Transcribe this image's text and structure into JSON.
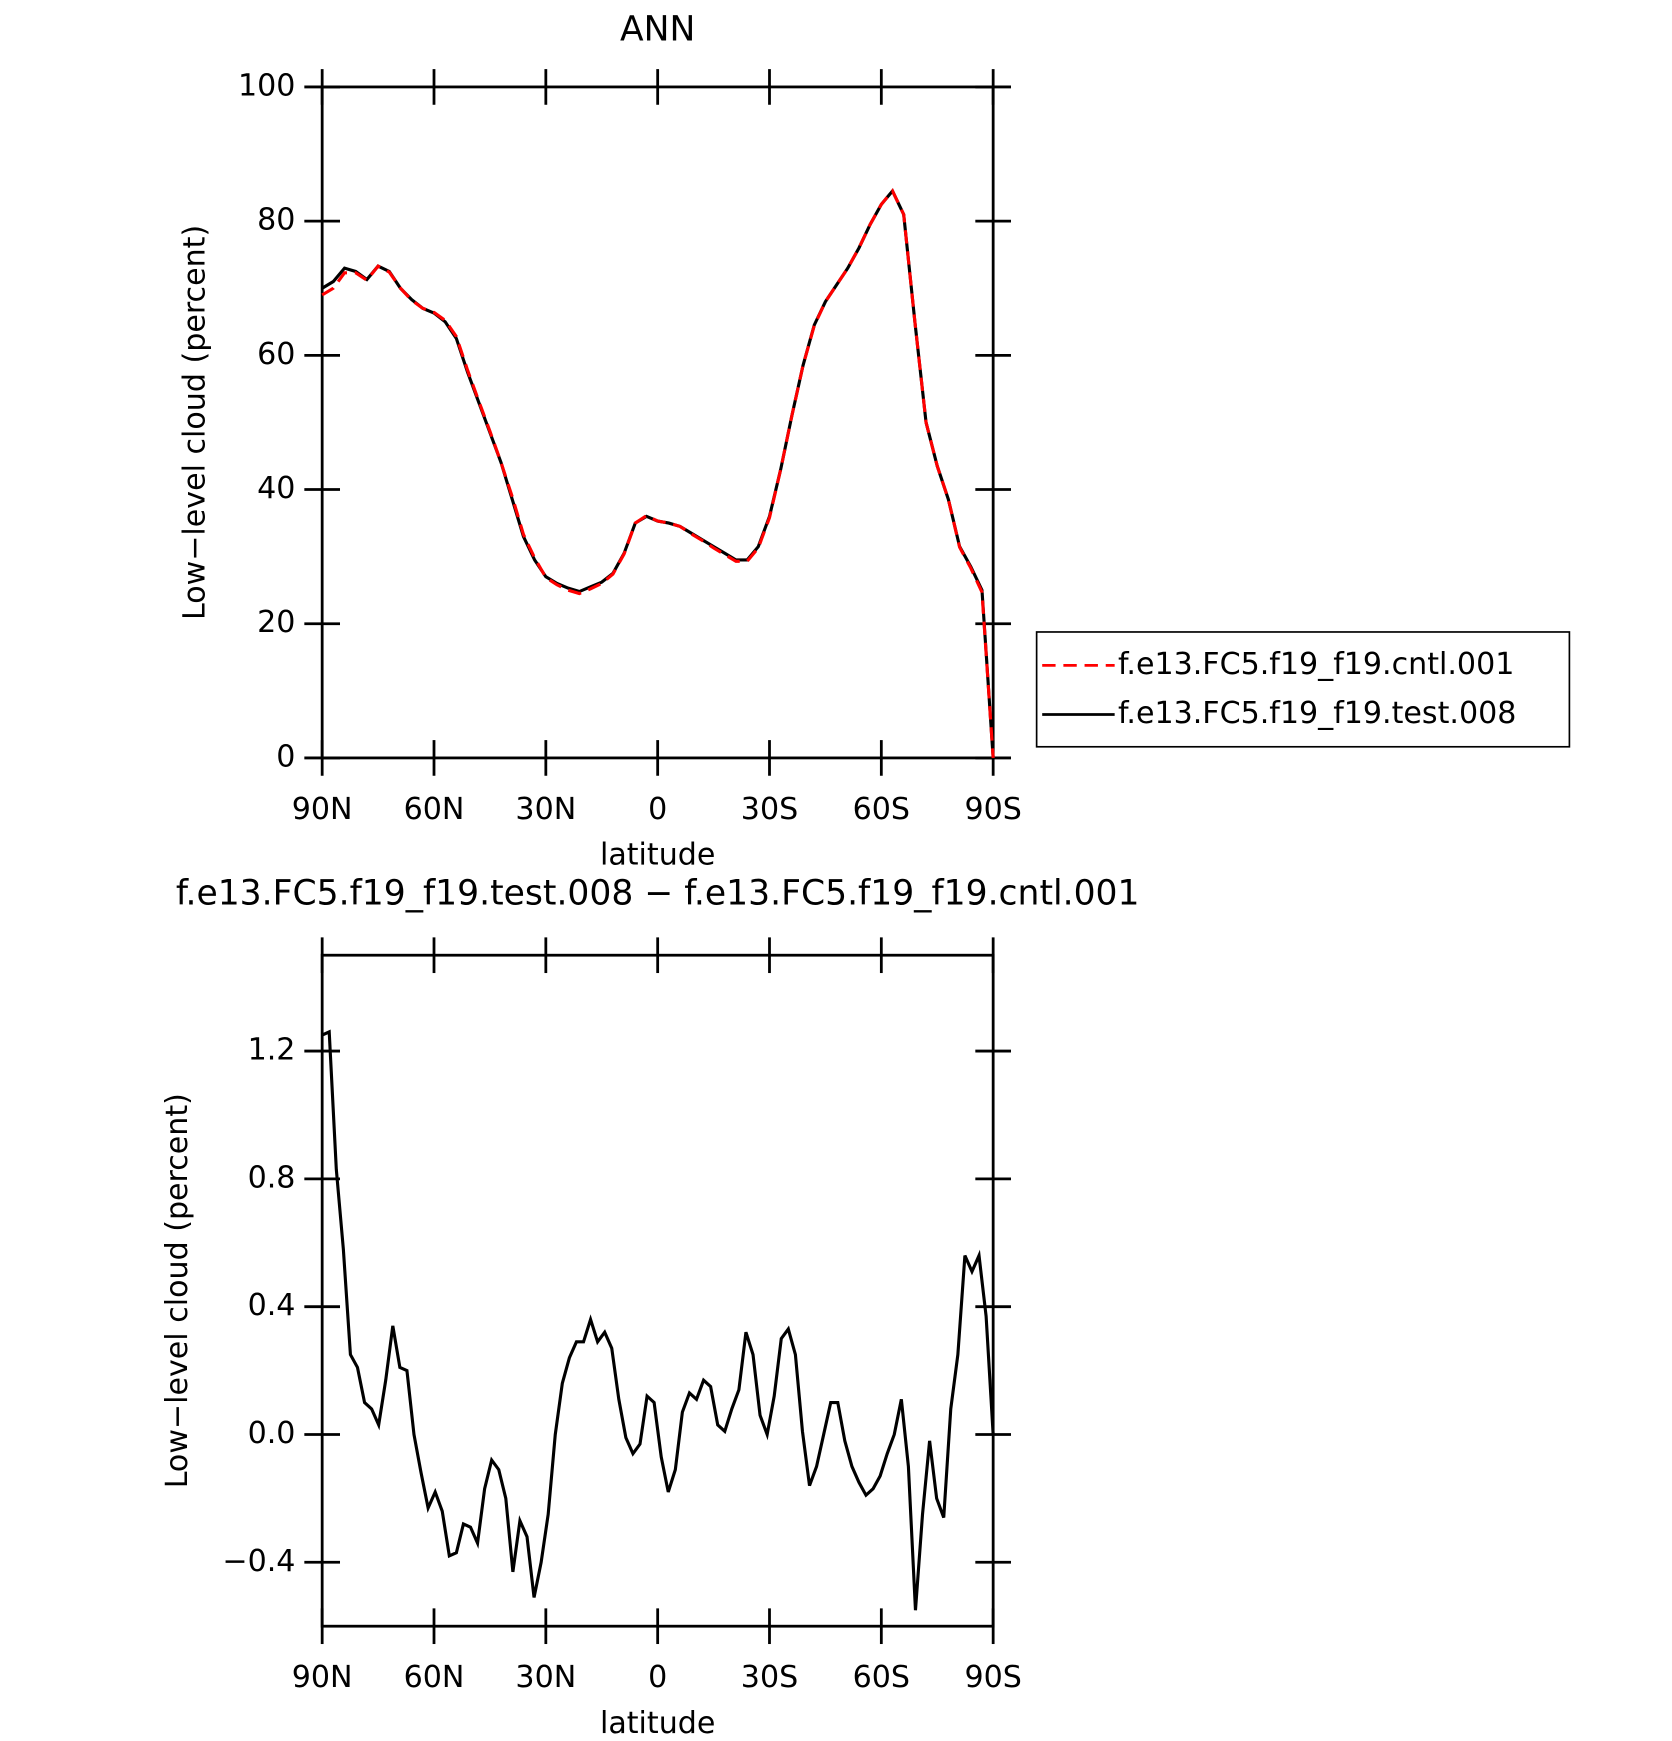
{
  "chart_data": [
    {
      "type": "line",
      "title": "ANN",
      "xlabel": "latitude",
      "ylabel": "Low−level cloud (percent)",
      "x": [
        90,
        87,
        84,
        81,
        78,
        75,
        72,
        69,
        66,
        63,
        60,
        57,
        54,
        51,
        48,
        45,
        42,
        39,
        36,
        33,
        30,
        27,
        24,
        21,
        18,
        15,
        12,
        9,
        6,
        3,
        0,
        -3,
        -6,
        -9,
        -12,
        -15,
        -18,
        -21,
        -24,
        -27,
        -30,
        -33,
        -36,
        -39,
        -42,
        -45,
        -48,
        -51,
        -54,
        -57,
        -60,
        -63,
        -66,
        -69,
        -72,
        -75,
        -78,
        -81,
        -84,
        -87,
        -90
      ],
      "xlim": [
        90,
        -90
      ],
      "xticks": [
        {
          "value": 90,
          "label": "90N"
        },
        {
          "value": 60,
          "label": "60N"
        },
        {
          "value": 30,
          "label": "30N"
        },
        0,
        {
          "value": -30,
          "label": "30S"
        },
        {
          "value": -60,
          "label": "60S"
        },
        {
          "value": -90,
          "label": "90S"
        }
      ],
      "ylim": [
        0,
        100
      ],
      "yticks": [
        0,
        20,
        40,
        60,
        80,
        100
      ],
      "legend": "right",
      "series": [
        {
          "name": "f.e13.FC5.f19_f19.cntl.001",
          "color": "#ff0000",
          "linestyle": "dashed",
          "values": [
            69,
            70,
            72.3,
            72.3,
            71.2,
            73.3,
            72.4,
            70,
            68.2,
            67,
            66.4,
            65.2,
            62.8,
            57.8,
            53.2,
            48.7,
            44,
            38.9,
            33.3,
            29.8,
            26.9,
            25.8,
            25,
            24.5,
            25.2,
            26,
            27.4,
            30.4,
            35,
            36.1,
            35.3,
            35,
            34.5,
            33.4,
            32.4,
            31.3,
            30.3,
            29.3,
            29.3,
            31.3,
            35.8,
            43,
            51,
            58.5,
            64.4,
            68,
            70.5,
            73,
            76,
            79.5,
            82.5,
            84.5,
            81,
            65,
            50,
            43.5,
            38.5,
            31.4,
            28.3,
            24.7,
            0
          ]
        },
        {
          "name": "f.e13.FC5.f19_f19.test.008",
          "color": "#000000",
          "linestyle": "solid",
          "values": [
            70,
            71,
            73,
            72.5,
            71.3,
            73.3,
            72.5,
            70,
            68.3,
            67,
            66.3,
            65,
            62.5,
            57.5,
            53,
            48.5,
            44,
            38.5,
            33,
            29.5,
            27,
            26,
            25.3,
            24.8,
            25.5,
            26.2,
            27.5,
            30.5,
            35,
            36,
            35.3,
            35,
            34.5,
            33.5,
            32.5,
            31.5,
            30.5,
            29.5,
            29.5,
            31.5,
            36,
            43,
            51,
            58.5,
            64.5,
            68,
            70.5,
            73,
            76,
            79.5,
            82.5,
            84.5,
            81,
            65,
            50,
            43.5,
            38.5,
            31.5,
            28.5,
            25,
            0
          ]
        }
      ]
    },
    {
      "type": "line",
      "title": "f.e13.FC5.f19_f19.test.008 − f.e13.FC5.f19_f19.cntl.001",
      "xlabel": "latitude",
      "ylabel": "Low−level cloud (percent)",
      "x": [
        90,
        88.11,
        86.21,
        84.32,
        82.42,
        80.53,
        78.63,
        76.74,
        74.84,
        72.95,
        71.05,
        69.16,
        67.26,
        65.37,
        63.47,
        61.58,
        59.68,
        57.79,
        55.89,
        54,
        52.11,
        50.21,
        48.32,
        46.42,
        44.53,
        42.63,
        40.74,
        38.84,
        36.95,
        35.05,
        33.16,
        31.26,
        29.37,
        27.47,
        25.58,
        23.68,
        21.79,
        19.89,
        18,
        16.11,
        14.21,
        12.32,
        10.42,
        8.53,
        6.63,
        4.74,
        2.84,
        0.95,
        -0.95,
        -2.84,
        -4.74,
        -6.63,
        -8.53,
        -10.42,
        -12.32,
        -14.21,
        -16.11,
        -18,
        -19.89,
        -21.79,
        -23.68,
        -25.58,
        -27.47,
        -29.37,
        -31.26,
        -33.16,
        -35.05,
        -36.95,
        -38.84,
        -40.74,
        -42.63,
        -44.53,
        -46.42,
        -48.32,
        -50.21,
        -52.11,
        -54,
        -55.89,
        -57.79,
        -59.68,
        -61.58,
        -63.47,
        -65.37,
        -67.26,
        -69.16,
        -71.05,
        -72.95,
        -74.84,
        -76.74,
        -78.63,
        -80.53,
        -82.42,
        -84.32,
        -86.21,
        -88.11,
        -90
      ],
      "xlim": [
        90,
        -90
      ],
      "xticks": [
        {
          "value": 90,
          "label": "90N"
        },
        {
          "value": 60,
          "label": "60N"
        },
        {
          "value": 30,
          "label": "30N"
        },
        0,
        {
          "value": -30,
          "label": "30S"
        },
        {
          "value": -60,
          "label": "60S"
        },
        {
          "value": -90,
          "label": "90S"
        }
      ],
      "ylim": [
        -0.6,
        1.5
      ],
      "yticks": [
        {
          "value": -0.4,
          "label": "−0.4"
        },
        {
          "value": 0,
          "label": "0.0"
        },
        0.4,
        0.8,
        1.2
      ],
      "series": [
        {
          "color": "#000000",
          "linestyle": "solid",
          "values": [
            1.25,
            1.26,
            0.83,
            0.58,
            0.25,
            0.21,
            0.1,
            0.08,
            0.03,
            0.17,
            0.34,
            0.21,
            0.2,
            0,
            -0.12,
            -0.23,
            -0.18,
            -0.24,
            -0.38,
            -0.37,
            -0.28,
            -0.29,
            -0.34,
            -0.17,
            -0.08,
            -0.11,
            -0.2,
            -0.43,
            -0.27,
            -0.32,
            -0.51,
            -0.4,
            -0.25,
            0,
            0.16,
            0.24,
            0.29,
            0.29,
            0.36,
            0.29,
            0.32,
            0.27,
            0.11,
            -0.01,
            -0.06,
            -0.03,
            0.12,
            0.1,
            -0.07,
            -0.18,
            -0.11,
            0.07,
            0.13,
            0.11,
            0.17,
            0.15,
            0.03,
            0.01,
            0.08,
            0.14,
            0.32,
            0.25,
            0.06,
            0,
            0.12,
            0.3,
            0.33,
            0.25,
            0.01,
            -0.16,
            -0.1,
            0,
            0.1,
            0.1,
            -0.02,
            -0.1,
            -0.15,
            -0.19,
            -0.17,
            -0.13,
            -0.06,
            0,
            0.11,
            -0.1,
            -0.55,
            -0.25,
            -0.02,
            -0.2,
            -0.26,
            0.08,
            0.25,
            0.56,
            0.51,
            0.56,
            0.37,
            0
          ]
        }
      ]
    }
  ]
}
